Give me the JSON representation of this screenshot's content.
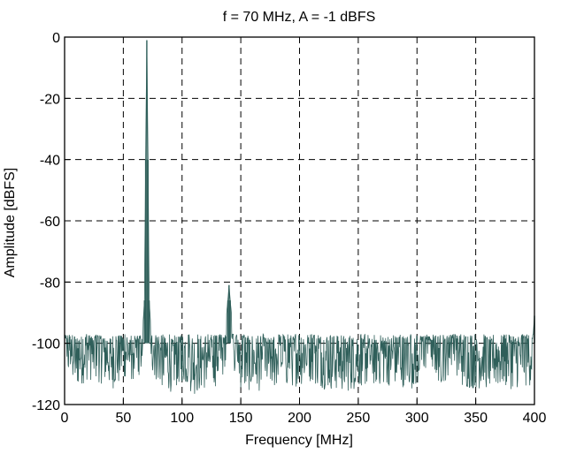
{
  "chart_data": {
    "type": "line",
    "title": "f = 70 MHz, A = -1 dBFS",
    "xlabel": "Frequency [MHz]",
    "ylabel": "Amplitude [dBFS]",
    "xlim": [
      0,
      400
    ],
    "ylim": [
      -120,
      0
    ],
    "xticks": [
      0,
      50,
      100,
      150,
      200,
      250,
      300,
      350,
      400
    ],
    "yticks": [
      0,
      -20,
      -40,
      -60,
      -80,
      -100,
      -120
    ],
    "grid": true,
    "grid_style": "dashed",
    "line_color": "#2f5f5a",
    "noise_floor_range": [
      -118,
      -97
    ],
    "series": [
      {
        "points": [
          [
            0,
            -100
          ],
          [
            10,
            -104
          ],
          [
            20,
            -101
          ],
          [
            30,
            -102
          ],
          [
            40,
            -104
          ],
          [
            50,
            -103
          ],
          [
            60,
            -101
          ],
          [
            66,
            -99
          ],
          [
            68,
            -86
          ],
          [
            69,
            -40
          ],
          [
            70,
            -1
          ],
          [
            71,
            -40
          ],
          [
            72,
            -86
          ],
          [
            74,
            -99
          ],
          [
            80,
            -103
          ],
          [
            90,
            -105
          ],
          [
            100,
            -102
          ],
          [
            110,
            -106
          ],
          [
            120,
            -104
          ],
          [
            130,
            -103
          ],
          [
            136,
            -99
          ],
          [
            139,
            -86
          ],
          [
            140,
            -81
          ],
          [
            141,
            -86
          ],
          [
            144,
            -99
          ],
          [
            150,
            -104
          ],
          [
            160,
            -105
          ],
          [
            180,
            -104
          ],
          [
            200,
            -103
          ],
          [
            210,
            -102
          ],
          [
            220,
            -104
          ],
          [
            240,
            -105
          ],
          [
            260,
            -103
          ],
          [
            280,
            -103
          ],
          [
            300,
            -104
          ],
          [
            310,
            -96
          ],
          [
            320,
            -103
          ],
          [
            330,
            -99
          ],
          [
            340,
            -104
          ],
          [
            360,
            -104
          ],
          [
            380,
            -104
          ],
          [
            398,
            -103
          ],
          [
            400,
            -91
          ]
        ]
      }
    ]
  }
}
